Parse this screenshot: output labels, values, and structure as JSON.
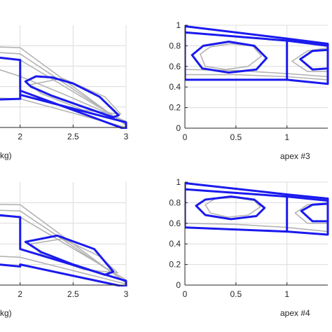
{
  "colors": {
    "trajectory": "#1a1aee",
    "trials": "#b4b4b4",
    "grid": "#dcdcdc"
  },
  "chart_data": [
    {
      "id": "top-left",
      "type": "line",
      "xlabel": "kg)",
      "xlim": [
        1.4,
        3.0
      ],
      "ylim": [
        0,
        1
      ],
      "xticks": [
        2,
        2.5,
        3
      ],
      "xtick_labels": [
        "2",
        "2.5",
        "3"
      ],
      "yticks": [],
      "grid": true,
      "series": [
        {
          "role": "trajectory",
          "x": [
            1.4,
            2.0,
            2.0,
            3.0,
            3.0,
            2.0,
            2.0,
            1.4
          ],
          "y": [
            0.73,
            0.66,
            0.32,
            0.05,
            -0.02,
            0.36,
            0.28,
            0.26
          ]
        },
        {
          "role": "trajectory",
          "x": [
            2.05,
            2.15,
            2.3,
            2.5,
            2.75,
            2.93,
            2.88,
            2.6,
            2.3,
            2.1,
            2.05
          ],
          "y": [
            0.45,
            0.5,
            0.49,
            0.43,
            0.3,
            0.12,
            0.1,
            0.2,
            0.31,
            0.4,
            0.45
          ]
        },
        {
          "role": "trajectory",
          "x": [
            1.4,
            1.62,
            1.78,
            1.8,
            1.7,
            1.5,
            1.4
          ],
          "y": [
            0.68,
            0.68,
            0.58,
            0.42,
            0.34,
            0.33,
            0.35
          ]
        },
        {
          "role": "trial",
          "x": [
            1.4,
            2.0,
            3.0
          ],
          "y": [
            0.8,
            0.78,
            0.02
          ]
        },
        {
          "role": "trial",
          "x": [
            1.4,
            2.0,
            3.0
          ],
          "y": [
            0.76,
            0.72,
            0.03
          ]
        },
        {
          "role": "trial",
          "x": [
            1.4,
            2.0,
            3.0
          ],
          "y": [
            0.71,
            0.66,
            0.04
          ]
        },
        {
          "role": "trial",
          "x": [
            1.4,
            1.7,
            2.0,
            2.4,
            3.0
          ],
          "y": [
            0.65,
            0.6,
            0.5,
            0.33,
            0.06
          ]
        },
        {
          "role": "trial",
          "x": [
            1.4,
            2.0,
            3.0
          ],
          "y": [
            0.3,
            0.28,
            0.0
          ]
        },
        {
          "role": "trial",
          "x": [
            2.1,
            2.4,
            2.8,
            2.95,
            2.6,
            2.2,
            2.1
          ],
          "y": [
            0.42,
            0.48,
            0.3,
            0.13,
            0.17,
            0.33,
            0.42
          ]
        },
        {
          "role": "trial",
          "x": [
            1.4,
            1.65,
            1.8,
            1.75,
            1.55,
            1.4
          ],
          "y": [
            0.62,
            0.62,
            0.5,
            0.4,
            0.37,
            0.38
          ]
        }
      ]
    },
    {
      "id": "top-right",
      "type": "line",
      "xlabel": "apex #3",
      "xlim": [
        0,
        1.4
      ],
      "ylim": [
        0,
        1
      ],
      "xticks": [
        0,
        0.5,
        1
      ],
      "xtick_labels": [
        "0",
        "0.5",
        "1"
      ],
      "yticks": [
        0,
        0.2,
        0.4,
        0.6,
        0.8,
        1
      ],
      "ytick_labels": [
        "0",
        "0.2",
        "0.4",
        "0.6",
        "0.8",
        "1"
      ],
      "grid": true,
      "series": [
        {
          "role": "trajectory",
          "x": [
            0.0,
            1.0,
            1.4,
            1.4,
            1.0,
            0.0,
            0.0
          ],
          "y": [
            0.99,
            0.87,
            0.82,
            0.43,
            0.47,
            0.47,
            0.99
          ]
        },
        {
          "role": "trajectory",
          "x": [
            0.0,
            1.0,
            1.4
          ],
          "y": [
            0.93,
            0.85,
            0.8
          ]
        },
        {
          "role": "trajectory",
          "x": [
            1.0,
            1.0
          ],
          "y": [
            0.87,
            0.47
          ]
        },
        {
          "role": "trajectory",
          "x": [
            0.07,
            0.18,
            0.43,
            0.68,
            0.8,
            0.7,
            0.43,
            0.17,
            0.07
          ],
          "y": [
            0.71,
            0.8,
            0.84,
            0.8,
            0.68,
            0.57,
            0.54,
            0.58,
            0.71
          ]
        },
        {
          "role": "trajectory",
          "x": [
            1.13,
            1.25,
            1.4,
            1.4,
            1.25,
            1.13
          ],
          "y": [
            0.67,
            0.75,
            0.76,
            0.58,
            0.57,
            0.67
          ]
        },
        {
          "role": "trial",
          "x": [
            0.0,
            0.5,
            1.0,
            1.4
          ],
          "y": [
            0.52,
            0.52,
            0.5,
            0.47
          ]
        },
        {
          "role": "trial",
          "x": [
            0.0,
            0.5,
            1.0,
            1.4
          ],
          "y": [
            0.57,
            0.56,
            0.53,
            0.5
          ]
        },
        {
          "role": "trial",
          "x": [
            0.15,
            0.25,
            0.45,
            0.66,
            0.75,
            0.62,
            0.4,
            0.2,
            0.15
          ],
          "y": [
            0.72,
            0.79,
            0.82,
            0.8,
            0.7,
            0.6,
            0.57,
            0.6,
            0.72
          ]
        },
        {
          "role": "trial",
          "x": [
            1.05,
            1.2,
            1.4,
            1.4,
            1.2,
            1.05
          ],
          "y": [
            0.65,
            0.75,
            0.78,
            0.55,
            0.55,
            0.65
          ]
        }
      ]
    },
    {
      "id": "bottom-left",
      "type": "line",
      "xlabel": "kg)",
      "xlim": [
        1.4,
        3.0
      ],
      "ylim": [
        0,
        1
      ],
      "xticks": [
        2,
        2.5,
        3
      ],
      "xtick_labels": [
        "2",
        "2.5",
        "3"
      ],
      "yticks": [],
      "grid": true,
      "series": [
        {
          "role": "trajectory",
          "x": [
            1.4,
            2.0,
            2.0,
            3.0,
            3.0,
            2.0,
            2.0,
            1.4
          ],
          "y": [
            0.72,
            0.66,
            0.35,
            0.04,
            -0.02,
            0.2,
            0.18,
            0.24
          ]
        },
        {
          "role": "trajectory",
          "x": [
            2.05,
            2.35,
            2.7,
            2.88,
            2.8,
            2.5,
            2.2,
            2.05
          ],
          "y": [
            0.42,
            0.48,
            0.35,
            0.13,
            0.1,
            0.2,
            0.32,
            0.42
          ]
        },
        {
          "role": "trajectory",
          "x": [
            1.4,
            1.62,
            1.78,
            1.75,
            1.55,
            1.4
          ],
          "y": [
            0.68,
            0.68,
            0.55,
            0.42,
            0.34,
            0.35
          ]
        },
        {
          "role": "trial",
          "x": [
            1.4,
            2.0,
            3.0
          ],
          "y": [
            0.79,
            0.78,
            0.02
          ]
        },
        {
          "role": "trial",
          "x": [
            1.4,
            2.0,
            3.0
          ],
          "y": [
            0.74,
            0.72,
            0.03
          ]
        },
        {
          "role": "trial",
          "x": [
            1.4,
            2.0,
            3.0
          ],
          "y": [
            0.69,
            0.66,
            0.05
          ]
        },
        {
          "role": "trial",
          "x": [
            1.4,
            2.0,
            3.0
          ],
          "y": [
            0.3,
            0.27,
            0.01
          ]
        },
        {
          "role": "trial",
          "x": [
            2.1,
            2.4,
            2.75,
            2.92,
            2.6,
            2.2,
            2.1
          ],
          "y": [
            0.4,
            0.45,
            0.28,
            0.12,
            0.15,
            0.3,
            0.4
          ]
        },
        {
          "role": "trial",
          "x": [
            1.4,
            1.65,
            1.8,
            1.72,
            1.52,
            1.4
          ],
          "y": [
            0.61,
            0.61,
            0.5,
            0.4,
            0.36,
            0.37
          ]
        }
      ]
    },
    {
      "id": "bottom-right",
      "type": "line",
      "xlabel": "apex #4",
      "xlim": [
        0,
        1.4
      ],
      "ylim": [
        0,
        1
      ],
      "xticks": [
        0,
        0.5,
        1
      ],
      "xtick_labels": [
        "0",
        "0.5",
        "1"
      ],
      "yticks": [
        0,
        0.2,
        0.4,
        0.6,
        0.8,
        1
      ],
      "ytick_labels": [
        "0",
        "0.2",
        "0.4",
        "0.6",
        "0.8",
        "1"
      ],
      "grid": true,
      "series": [
        {
          "role": "trajectory",
          "x": [
            0.0,
            1.0,
            1.4,
            1.4,
            1.0,
            0.0,
            0.0
          ],
          "y": [
            0.99,
            0.88,
            0.84,
            0.49,
            0.52,
            0.56,
            0.99
          ]
        },
        {
          "role": "trajectory",
          "x": [
            0.0,
            1.0,
            1.4
          ],
          "y": [
            0.93,
            0.86,
            0.82
          ]
        },
        {
          "role": "trajectory",
          "x": [
            1.0,
            1.0
          ],
          "y": [
            0.88,
            0.52
          ]
        },
        {
          "role": "trajectory",
          "x": [
            0.11,
            0.2,
            0.45,
            0.68,
            0.78,
            0.7,
            0.45,
            0.2,
            0.11
          ],
          "y": [
            0.77,
            0.83,
            0.86,
            0.83,
            0.75,
            0.67,
            0.64,
            0.68,
            0.77
          ]
        },
        {
          "role": "trajectory",
          "x": [
            1.14,
            1.25,
            1.4,
            1.4,
            1.25,
            1.14
          ],
          "y": [
            0.72,
            0.78,
            0.79,
            0.62,
            0.62,
            0.72
          ]
        },
        {
          "role": "trial",
          "x": [
            0.0,
            0.5,
            1.0,
            1.4
          ],
          "y": [
            0.6,
            0.59,
            0.56,
            0.52
          ]
        },
        {
          "role": "trial",
          "x": [
            0.2,
            0.3,
            0.5,
            0.68,
            0.74,
            0.62,
            0.42,
            0.25,
            0.2
          ],
          "y": [
            0.78,
            0.84,
            0.85,
            0.82,
            0.76,
            0.68,
            0.66,
            0.7,
            0.78
          ]
        },
        {
          "role": "trial",
          "x": [
            1.08,
            1.2,
            1.4,
            1.4,
            1.2,
            1.08
          ],
          "y": [
            0.7,
            0.78,
            0.8,
            0.6,
            0.6,
            0.7
          ]
        }
      ]
    }
  ]
}
